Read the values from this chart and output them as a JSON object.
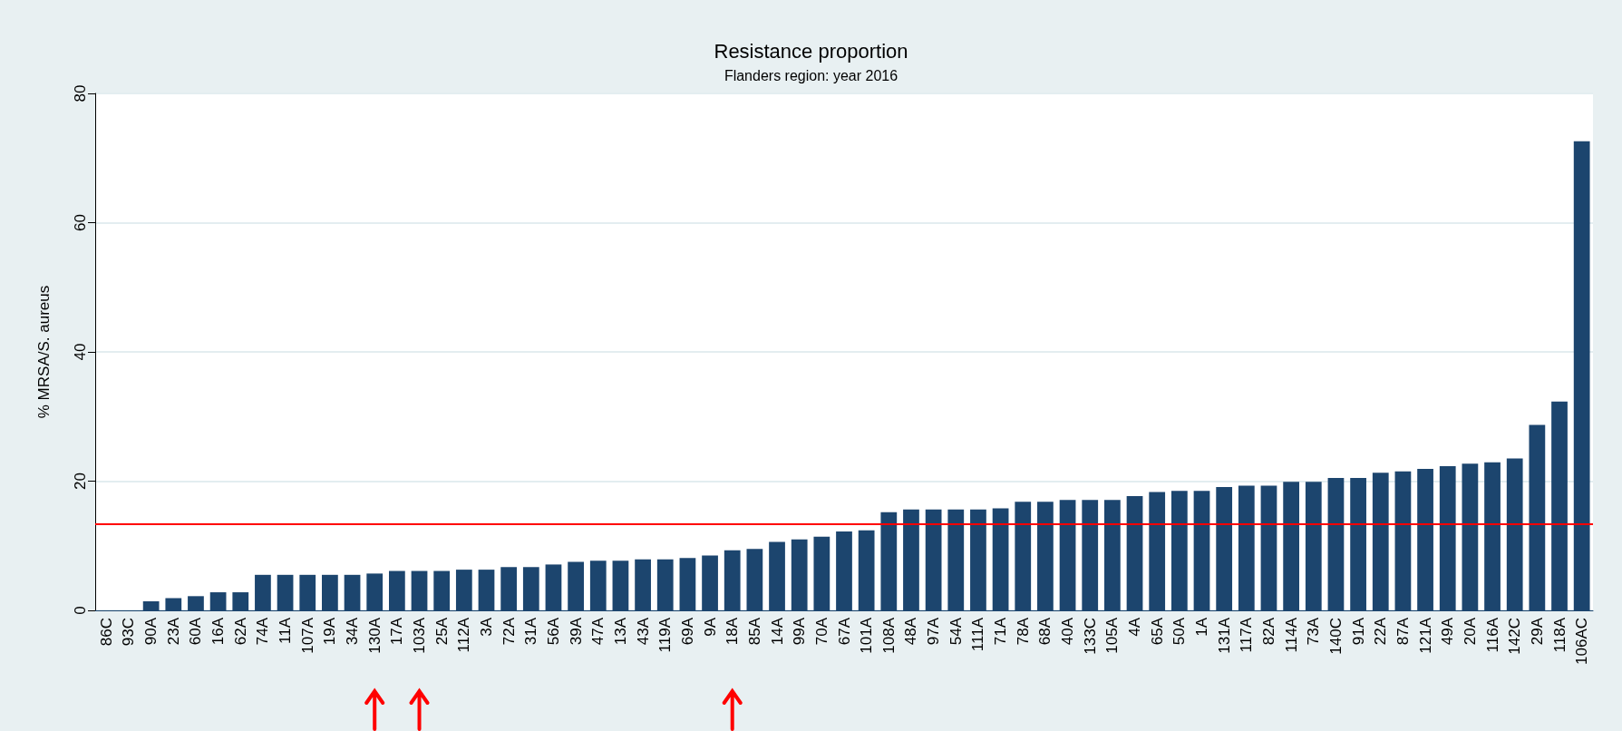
{
  "chart_data": {
    "type": "bar",
    "title": "Resistance proportion",
    "subtitle": "Flanders region: year 2016",
    "ylabel": "% MRSA/S. aureus",
    "categories": [
      "86C",
      "93C",
      "90A",
      "23A",
      "60A",
      "16A",
      "62A",
      "74A",
      "11A",
      "107A",
      "19A",
      "34A",
      "130A",
      "17A",
      "103A",
      "25A",
      "112A",
      "3A",
      "72A",
      "31A",
      "56A",
      "39A",
      "47A",
      "13A",
      "43A",
      "119A",
      "69A",
      "9A",
      "18A",
      "85A",
      "14A",
      "99A",
      "70A",
      "67A",
      "101A",
      "108A",
      "48A",
      "97A",
      "54A",
      "111A",
      "71A",
      "78A",
      "68A",
      "40A",
      "133C",
      "105A",
      "4A",
      "65A",
      "50A",
      "1A",
      "131A",
      "117A",
      "82A",
      "114A",
      "73A",
      "140C",
      "91A",
      "22A",
      "87A",
      "121A",
      "49A",
      "20A",
      "116A",
      "142C",
      "29A",
      "118A",
      "106AC"
    ],
    "values": [
      0,
      0,
      1.4,
      1.9,
      2.2,
      2.8,
      2.8,
      5.5,
      5.5,
      5.5,
      5.5,
      5.5,
      5.7,
      6.1,
      6.1,
      6.1,
      6.3,
      6.3,
      6.7,
      6.7,
      7.1,
      7.5,
      7.7,
      7.7,
      7.9,
      7.9,
      8.1,
      8.5,
      9.3,
      9.5,
      10.6,
      11.0,
      11.4,
      12.2,
      12.4,
      15.2,
      15.6,
      15.6,
      15.6,
      15.6,
      15.8,
      16.8,
      16.8,
      17.1,
      17.1,
      17.1,
      17.7,
      18.3,
      18.5,
      18.5,
      19.1,
      19.3,
      19.3,
      19.9,
      19.9,
      20.5,
      20.5,
      21.3,
      21.5,
      21.9,
      22.3,
      22.7,
      22.9,
      23.5,
      28.7,
      32.3,
      72.6
    ],
    "color": "#1c456e",
    "ylim": [
      0,
      80
    ],
    "yticks": [
      0,
      20,
      40,
      60,
      80
    ],
    "grid": "y",
    "ref_lines": [
      {
        "axis": "y",
        "value": 13.3,
        "color": "#ff0000",
        "line_style": "solid"
      }
    ]
  }
}
